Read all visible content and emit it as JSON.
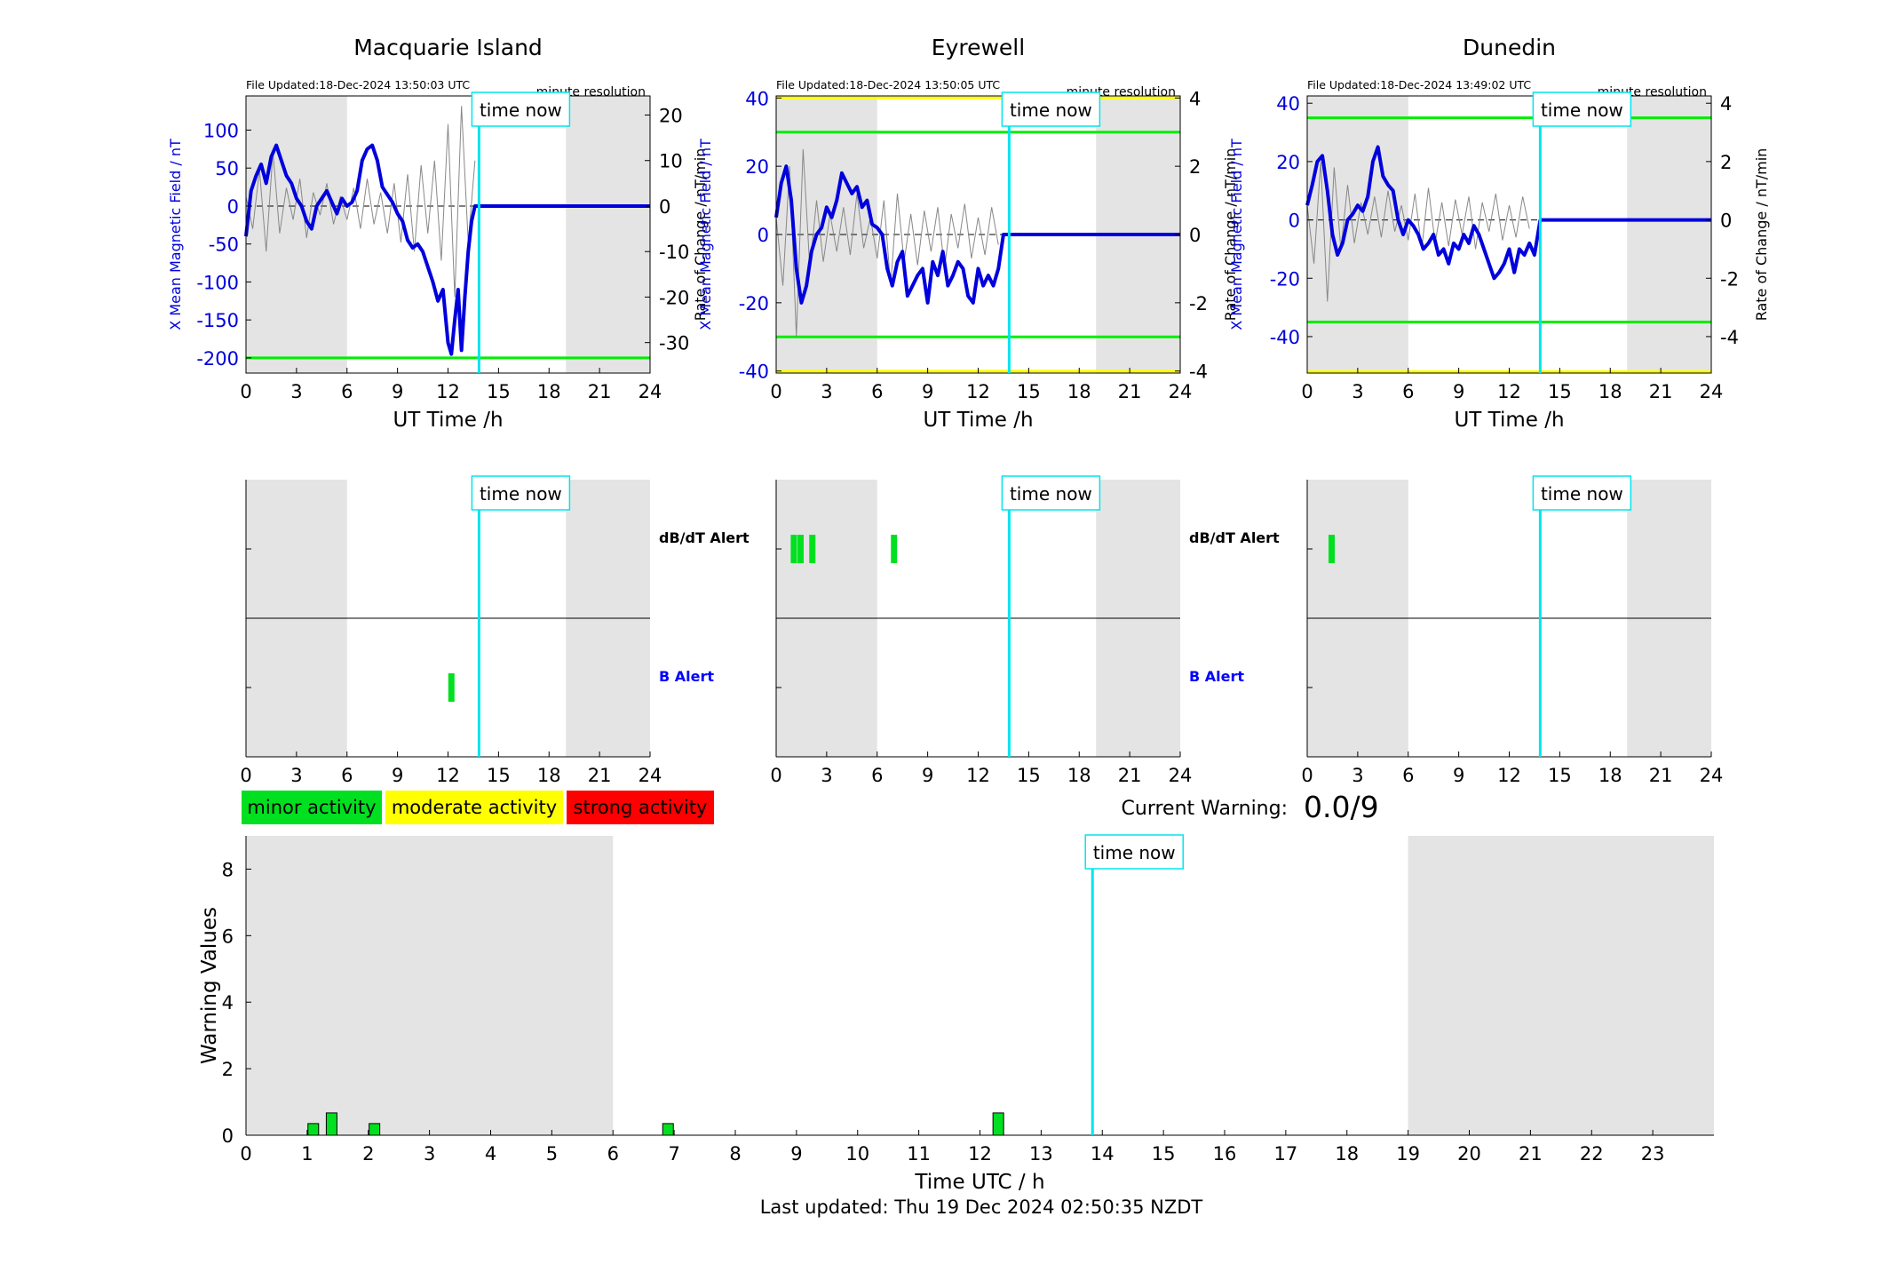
{
  "page": {
    "current_warning_label": "Current Warning:",
    "current_warning_value": "0.0/9",
    "last_updated": "Last updated: Thu 19 Dec 2024 02:50:35 NZDT",
    "time_now_label": "time now",
    "time_now_hour": 13.84,
    "night_shading": [
      [
        0,
        6
      ],
      [
        19,
        24
      ]
    ],
    "colors": {
      "field": "#0000dd",
      "rate": "#888888",
      "minor": "#00e020",
      "moderate": "#ffff00",
      "strong": "#ff0000",
      "time_now": "#00e5ee",
      "night": "#e4e4e4"
    }
  },
  "legend": {
    "items": [
      {
        "label": "minor activity",
        "color": "#00e020"
      },
      {
        "label": "moderate activity",
        "color": "#ffff00"
      },
      {
        "label": "strong activity",
        "color": "#ff0000"
      }
    ]
  },
  "chart_data": [
    {
      "type": "line",
      "title": "Macquarie Island",
      "file_updated": "File Updated:18-Dec-2024 13:50:03 UTC",
      "resolution": "minute resolution",
      "xlabel": "UT Time /h",
      "ylabel_left": "X Mean Magnetic Field / nT",
      "ylabel_right": "Rate of Change / nT/min",
      "xlim": [
        0,
        24
      ],
      "xticks": [
        0,
        3,
        6,
        9,
        12,
        15,
        18,
        21,
        24
      ],
      "ylim_left": [
        -220,
        145
      ],
      "yticks_left": [
        100,
        50,
        0,
        -50,
        -100,
        -150,
        -200
      ],
      "ylim_right": [
        -36.7,
        24.2
      ],
      "yticks_right": [
        20,
        10,
        0,
        -10,
        -20,
        -30
      ],
      "thresholds_left": [
        {
          "value": -200,
          "color": "#00ee00"
        }
      ],
      "field_series": {
        "name": "X Mean Magnetic Field",
        "x": [
          0,
          0.3,
          0.6,
          0.9,
          1.2,
          1.5,
          1.8,
          2.1,
          2.4,
          2.7,
          3.0,
          3.3,
          3.6,
          3.9,
          4.2,
          4.5,
          4.8,
          5.1,
          5.4,
          5.7,
          6.0,
          6.3,
          6.6,
          6.9,
          7.2,
          7.5,
          7.8,
          8.1,
          8.4,
          8.7,
          9.0,
          9.3,
          9.6,
          9.9,
          10.2,
          10.5,
          10.8,
          11.1,
          11.4,
          11.7,
          12.0,
          12.2,
          12.4,
          12.6,
          12.8,
          13.0,
          13.2,
          13.4,
          13.6,
          13.84
        ],
        "y": [
          -40,
          20,
          40,
          55,
          30,
          65,
          80,
          60,
          40,
          30,
          10,
          0,
          -20,
          -30,
          0,
          10,
          20,
          5,
          -10,
          10,
          0,
          5,
          20,
          60,
          75,
          80,
          60,
          25,
          15,
          5,
          -10,
          -20,
          -45,
          -55,
          -50,
          -60,
          -80,
          -100,
          -125,
          -110,
          -180,
          -195,
          -150,
          -110,
          -190,
          -120,
          -60,
          -20,
          0,
          0
        ]
      },
      "rate_series": {
        "name": "Rate of Change",
        "x": [
          0,
          0.4,
          0.8,
          1.2,
          1.6,
          2.0,
          2.4,
          2.8,
          3.2,
          3.6,
          4.0,
          4.4,
          4.8,
          5.2,
          5.6,
          6.0,
          6.4,
          6.8,
          7.2,
          7.6,
          8.0,
          8.4,
          8.8,
          9.2,
          9.6,
          10.0,
          10.4,
          10.8,
          11.2,
          11.6,
          12.0,
          12.4,
          12.8,
          13.2,
          13.6
        ],
        "y": [
          2,
          -5,
          8,
          -10,
          12,
          -6,
          4,
          -3,
          6,
          -7,
          3,
          -2,
          5,
          -4,
          2,
          -3,
          4,
          -5,
          6,
          -4,
          3,
          -6,
          5,
          -8,
          7,
          -10,
          9,
          -6,
          10,
          -12,
          18,
          -20,
          22,
          -8,
          10
        ]
      }
    },
    {
      "type": "line",
      "title": "Eyrewell",
      "file_updated": "File Updated:18-Dec-2024 13:50:05 UTC",
      "resolution": "minute resolution",
      "xlabel": "UT Time /h",
      "ylabel_left": "X Mean Magnetic Field / nT",
      "ylabel_right": "Rate of Change / nT/min",
      "xlim": [
        0,
        24
      ],
      "xticks": [
        0,
        3,
        6,
        9,
        12,
        15,
        18,
        21,
        24
      ],
      "ylim_left": [
        -40.6,
        40.6
      ],
      "yticks_left": [
        40,
        20,
        0,
        -20,
        -40
      ],
      "ylim_right": [
        -4.06,
        4.06
      ],
      "yticks_right": [
        4,
        2,
        0,
        -2,
        -4
      ],
      "thresholds_left": [
        {
          "value": 40,
          "color": "#ffff00"
        },
        {
          "value": 30,
          "color": "#00ee00"
        },
        {
          "value": -30,
          "color": "#00ee00"
        },
        {
          "value": -40,
          "color": "#ffff00"
        }
      ],
      "field_series": {
        "name": "X Mean Magnetic Field",
        "x": [
          0,
          0.3,
          0.6,
          0.9,
          1.2,
          1.5,
          1.8,
          2.1,
          2.4,
          2.7,
          3.0,
          3.3,
          3.6,
          3.9,
          4.2,
          4.5,
          4.8,
          5.1,
          5.4,
          5.7,
          6.0,
          6.3,
          6.6,
          6.9,
          7.2,
          7.5,
          7.8,
          8.1,
          8.4,
          8.7,
          9.0,
          9.3,
          9.6,
          9.9,
          10.2,
          10.5,
          10.8,
          11.1,
          11.4,
          11.7,
          12.0,
          12.3,
          12.6,
          12.9,
          13.2,
          13.5,
          13.84
        ],
        "y": [
          5,
          15,
          20,
          10,
          -10,
          -20,
          -15,
          -5,
          0,
          2,
          8,
          5,
          10,
          18,
          15,
          12,
          14,
          8,
          10,
          3,
          2,
          0,
          -10,
          -15,
          -8,
          -5,
          -18,
          -15,
          -12,
          -10,
          -20,
          -8,
          -12,
          -5,
          -15,
          -12,
          -8,
          -10,
          -18,
          -20,
          -10,
          -15,
          -12,
          -15,
          -10,
          0,
          0
        ]
      },
      "rate_series": {
        "name": "Rate of Change",
        "x": [
          0,
          0.4,
          0.8,
          1.2,
          1.6,
          2.0,
          2.4,
          2.8,
          3.2,
          3.6,
          4.0,
          4.4,
          4.8,
          5.2,
          5.6,
          6.0,
          6.4,
          6.8,
          7.2,
          7.6,
          8.0,
          8.4,
          8.8,
          9.2,
          9.6,
          10.0,
          10.4,
          10.8,
          11.2,
          11.6,
          12.0,
          12.4,
          12.8,
          13.2
        ],
        "y": [
          0.5,
          -1.5,
          2.0,
          -3.0,
          2.5,
          -1.0,
          1.0,
          -0.8,
          0.6,
          -0.5,
          0.8,
          -0.6,
          1.2,
          -0.4,
          0.5,
          -0.7,
          1.0,
          -1.5,
          1.2,
          -0.8,
          0.6,
          -0.9,
          0.7,
          -0.5,
          0.8,
          -1.0,
          0.6,
          -0.4,
          0.9,
          -0.7,
          0.5,
          -0.6,
          0.8,
          -0.3
        ]
      }
    },
    {
      "type": "line",
      "title": "Dunedin",
      "file_updated": "File Updated:18-Dec-2024 13:49:02 UTC",
      "resolution": "minute resolution",
      "xlabel": "UT Time /h",
      "ylabel_left": "X Mean Magnetic Field / nT",
      "ylabel_right": "Rate of Change / nT/min",
      "xlim": [
        0,
        24
      ],
      "xticks": [
        0,
        3,
        6,
        9,
        12,
        15,
        18,
        21,
        24
      ],
      "ylim_left": [
        -52.5,
        42.5
      ],
      "yticks_left": [
        40,
        20,
        0,
        -20,
        -40
      ],
      "ylim_right": [
        -5.25,
        4.25
      ],
      "yticks_right": [
        4,
        2,
        0,
        -2,
        -4
      ],
      "thresholds_left": [
        {
          "value": 35,
          "color": "#00ee00"
        },
        {
          "value": -35,
          "color": "#00ee00"
        },
        {
          "value": -52,
          "color": "#ffff00"
        }
      ],
      "field_series": {
        "name": "X Mean Magnetic Field",
        "x": [
          0,
          0.3,
          0.6,
          0.9,
          1.2,
          1.5,
          1.8,
          2.1,
          2.4,
          2.7,
          3.0,
          3.3,
          3.6,
          3.9,
          4.2,
          4.5,
          4.8,
          5.1,
          5.4,
          5.7,
          6.0,
          6.3,
          6.6,
          6.9,
          7.2,
          7.5,
          7.8,
          8.1,
          8.4,
          8.7,
          9.0,
          9.3,
          9.6,
          9.9,
          10.2,
          10.5,
          10.8,
          11.1,
          11.4,
          11.7,
          12.0,
          12.3,
          12.6,
          12.9,
          13.2,
          13.5,
          13.84
        ],
        "y": [
          5,
          12,
          20,
          22,
          10,
          -5,
          -12,
          -8,
          0,
          2,
          5,
          3,
          8,
          20,
          25,
          15,
          12,
          10,
          0,
          -5,
          0,
          -2,
          -5,
          -10,
          -8,
          -5,
          -12,
          -10,
          -15,
          -8,
          -10,
          -5,
          -8,
          -2,
          -5,
          -10,
          -15,
          -20,
          -18,
          -15,
          -10,
          -18,
          -10,
          -12,
          -8,
          -12,
          0
        ]
      },
      "rate_series": {
        "name": "Rate of Change",
        "x": [
          0,
          0.4,
          0.8,
          1.2,
          1.6,
          2.0,
          2.4,
          2.8,
          3.2,
          3.6,
          4.0,
          4.4,
          4.8,
          5.2,
          5.6,
          6.0,
          6.4,
          6.8,
          7.2,
          7.6,
          8.0,
          8.4,
          8.8,
          9.2,
          9.6,
          10.0,
          10.4,
          10.8,
          11.2,
          11.6,
          12.0,
          12.4,
          12.8,
          13.2
        ],
        "y": [
          0.5,
          -1.5,
          2.0,
          -2.8,
          1.8,
          -1.0,
          1.2,
          -0.8,
          0.6,
          -0.5,
          0.8,
          -0.6,
          1.0,
          -0.4,
          0.5,
          -0.7,
          0.9,
          -1.0,
          1.1,
          -0.8,
          0.6,
          -0.9,
          0.7,
          -0.5,
          0.8,
          -1.0,
          0.6,
          -0.4,
          0.9,
          -0.7,
          0.5,
          -0.6,
          0.8,
          -0.3
        ]
      }
    },
    {
      "type": "bar",
      "station": "Macquarie Island",
      "xlim": [
        0,
        24
      ],
      "xticks": [
        0,
        3,
        6,
        9,
        12,
        15,
        18,
        21,
        24
      ],
      "lanes": [
        "dB/dT Alert",
        "B Alert"
      ],
      "lane_label_colors": [
        "#000000",
        "#0000ff"
      ],
      "alerts": [
        {
          "lane": "B Alert",
          "hour": 12.2,
          "level": "minor"
        }
      ]
    },
    {
      "type": "bar",
      "station": "Eyrewell",
      "xlim": [
        0,
        24
      ],
      "xticks": [
        0,
        3,
        6,
        9,
        12,
        15,
        18,
        21,
        24
      ],
      "lanes": [
        "dB/dT Alert",
        "B Alert"
      ],
      "lane_label_colors": [
        "#000000",
        "#0000ff"
      ],
      "alerts": [
        {
          "lane": "dB/dT Alert",
          "hour": 1.05,
          "level": "minor"
        },
        {
          "lane": "dB/dT Alert",
          "hour": 1.45,
          "level": "minor"
        },
        {
          "lane": "dB/dT Alert",
          "hour": 2.15,
          "level": "minor"
        },
        {
          "lane": "dB/dT Alert",
          "hour": 7.0,
          "level": "minor"
        }
      ]
    },
    {
      "type": "bar",
      "station": "Dunedin",
      "xlim": [
        0,
        24
      ],
      "xticks": [
        0,
        3,
        6,
        9,
        12,
        15,
        18,
        21,
        24
      ],
      "lanes": [
        "dB/dT Alert",
        "B Alert"
      ],
      "lane_label_colors": [
        "#000000",
        "#0000ff"
      ],
      "alerts": [
        {
          "lane": "dB/dT Alert",
          "hour": 1.45,
          "level": "minor"
        }
      ]
    },
    {
      "type": "bar",
      "xlabel": "Time UTC / h",
      "ylabel": "Warning Values",
      "xlim": [
        0,
        24
      ],
      "xticks": [
        0,
        1,
        2,
        3,
        4,
        5,
        6,
        7,
        8,
        9,
        10,
        11,
        12,
        13,
        14,
        15,
        16,
        17,
        18,
        19,
        20,
        21,
        22,
        23
      ],
      "ylim": [
        0,
        9
      ],
      "yticks": [
        0,
        2,
        4,
        6,
        8
      ],
      "bars": [
        {
          "x": 1.1,
          "value": 0.35,
          "level": "minor"
        },
        {
          "x": 1.4,
          "value": 0.67,
          "level": "minor"
        },
        {
          "x": 2.1,
          "value": 0.35,
          "level": "minor"
        },
        {
          "x": 6.9,
          "value": 0.35,
          "level": "minor"
        },
        {
          "x": 12.3,
          "value": 0.67,
          "level": "minor"
        }
      ]
    }
  ]
}
